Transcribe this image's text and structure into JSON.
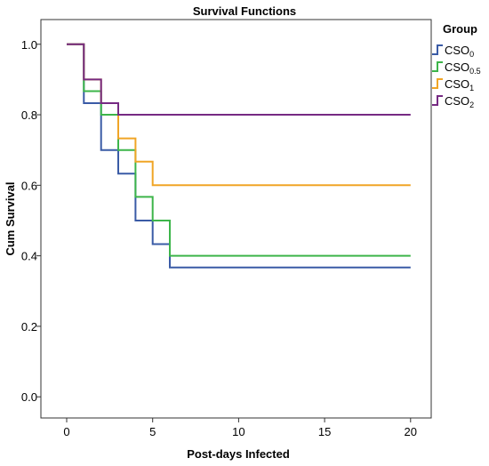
{
  "chart_data": {
    "type": "line",
    "step": true,
    "title": "Survival Functions",
    "xlabel": "Post-days Infected",
    "ylabel": "Cum Survival",
    "xlim": [
      -1.5,
      21.2
    ],
    "ylim": [
      -0.06,
      1.07
    ],
    "x_ticks": [
      0,
      5,
      10,
      15,
      20
    ],
    "y_ticks": [
      0.0,
      0.2,
      0.4,
      0.6,
      0.8,
      1.0
    ],
    "x_tick_labels": [
      "0",
      "5",
      "10",
      "15",
      "20"
    ],
    "y_tick_labels": [
      "0.0",
      "0.2",
      "0.4",
      "0.6",
      "0.8",
      "1.0"
    ],
    "grid": false,
    "legend": {
      "title": "Group",
      "placement": "right",
      "entries": [
        {
          "base": "CSO",
          "sub": "0"
        },
        {
          "base": "CSO",
          "sub": "0.5"
        },
        {
          "base": "CSO",
          "sub": "1"
        },
        {
          "base": "CSO",
          "sub": "2"
        }
      ]
    },
    "series": [
      {
        "color": "#3A5BA6",
        "points": [
          [
            0,
            1.0
          ],
          [
            1,
            0.833
          ],
          [
            2,
            0.7
          ],
          [
            3,
            0.633
          ],
          [
            4,
            0.5
          ],
          [
            5,
            0.433
          ],
          [
            6,
            0.367
          ],
          [
            20,
            0.367
          ]
        ]
      },
      {
        "color": "#3DB54A",
        "points": [
          [
            0,
            1.0
          ],
          [
            1,
            0.867
          ],
          [
            2,
            0.8
          ],
          [
            3,
            0.7
          ],
          [
            4,
            0.567
          ],
          [
            5,
            0.5
          ],
          [
            6,
            0.4
          ],
          [
            20,
            0.4
          ]
        ]
      },
      {
        "color": "#F0A526",
        "points": [
          [
            0,
            1.0
          ],
          [
            1,
            0.9
          ],
          [
            2,
            0.833
          ],
          [
            3,
            0.733
          ],
          [
            4,
            0.667
          ],
          [
            5,
            0.6
          ],
          [
            20,
            0.6
          ]
        ]
      },
      {
        "color": "#762A83",
        "points": [
          [
            0,
            1.0
          ],
          [
            1,
            0.9
          ],
          [
            2,
            0.833
          ],
          [
            3,
            0.8
          ],
          [
            20,
            0.8
          ]
        ]
      }
    ]
  }
}
